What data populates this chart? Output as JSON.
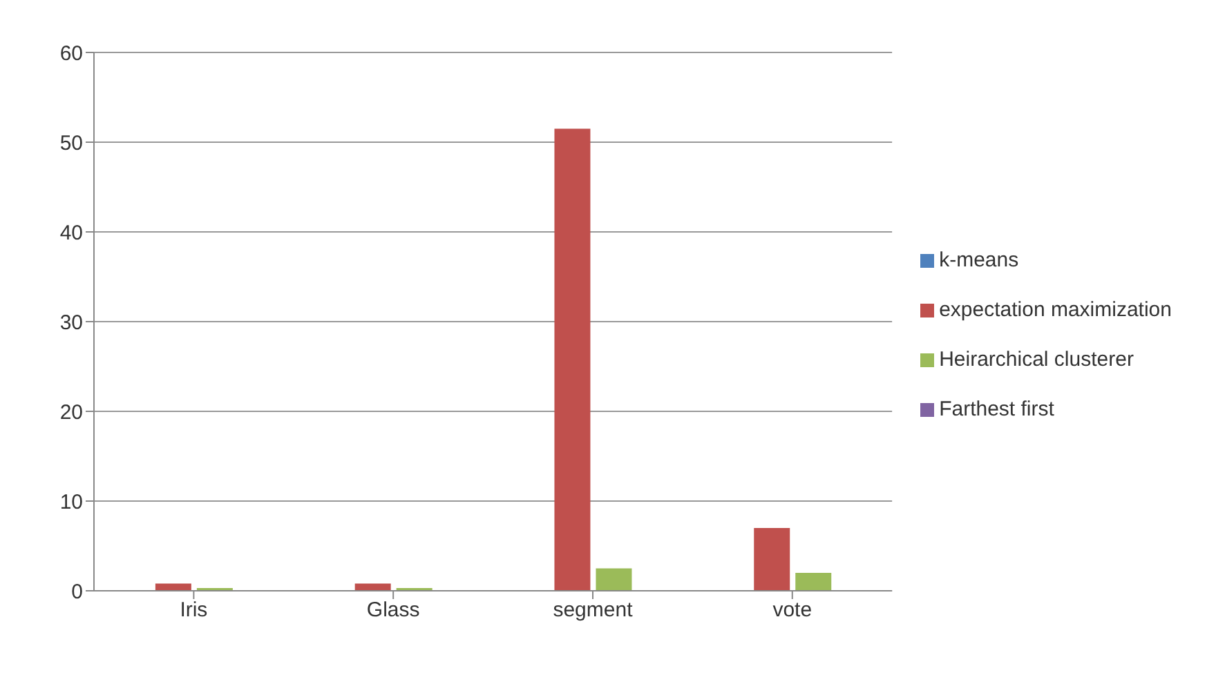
{
  "chart_data": {
    "type": "bar",
    "categories": [
      "Iris",
      "Glass",
      "segment",
      "vote"
    ],
    "series": [
      {
        "name": "k-means",
        "color": "#4f81bd",
        "values": [
          0,
          0,
          0,
          0
        ]
      },
      {
        "name": "expectation maximization",
        "color": "#c0504d",
        "values": [
          0.8,
          0.8,
          51.5,
          7
        ]
      },
      {
        "name": "Heirarchical clusterer",
        "color": "#9bbb59",
        "values": [
          0.3,
          0.3,
          2.5,
          2
        ]
      },
      {
        "name": "Farthest first",
        "color": "#8064a2",
        "values": [
          0,
          0,
          0,
          0
        ]
      }
    ],
    "ylim": [
      0,
      60
    ],
    "yticks": [
      0,
      10,
      20,
      30,
      40,
      50,
      60
    ],
    "grid": "y",
    "legend": "right"
  }
}
